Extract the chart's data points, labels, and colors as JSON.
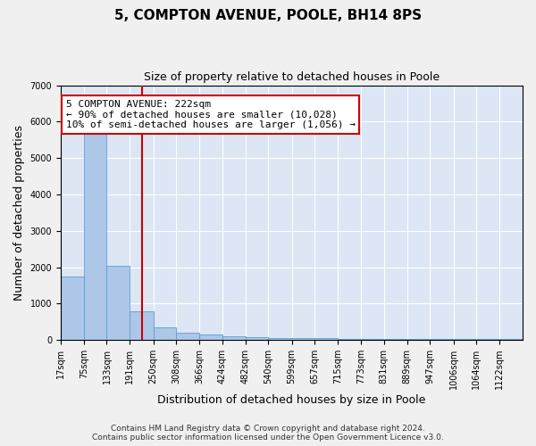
{
  "title1": "5, COMPTON AVENUE, POOLE, BH14 8PS",
  "title2": "Size of property relative to detached houses in Poole",
  "xlabel": "Distribution of detached houses by size in Poole",
  "ylabel": "Number of detached properties",
  "bin_edges": [
    17,
    75,
    133,
    191,
    250,
    308,
    366,
    424,
    482,
    540,
    599,
    657,
    715,
    773,
    831,
    889,
    947,
    1006,
    1064,
    1122,
    1180
  ],
  "bar_heights": [
    1750,
    5750,
    2050,
    800,
    350,
    200,
    150,
    100,
    80,
    60,
    50,
    50,
    30,
    30,
    30,
    30,
    30,
    30,
    30,
    30
  ],
  "bar_color": "#aec6e8",
  "bar_edge_color": "#5a9fd4",
  "red_line_x": 222,
  "ylim": [
    0,
    7000
  ],
  "xlim": [
    17,
    1180
  ],
  "annotation_text": "5 COMPTON AVENUE: 222sqm\n← 90% of detached houses are smaller (10,028)\n10% of semi-detached houses are larger (1,056) →",
  "annotation_box_color": "#ffffff",
  "annotation_box_edge_color": "#cc0000",
  "annotation_text_color": "#000000",
  "red_line_color": "#cc0000",
  "background_color": "#dce6f5",
  "grid_color": "#ffffff",
  "footer_line1": "Contains HM Land Registry data © Crown copyright and database right 2024.",
  "footer_line2": "Contains public sector information licensed under the Open Government Licence v3.0.",
  "title1_fontsize": 11,
  "title2_fontsize": 9,
  "xlabel_fontsize": 9,
  "ylabel_fontsize": 9,
  "tick_fontsize": 7,
  "footer_fontsize": 6.5,
  "annot_fontsize": 8
}
